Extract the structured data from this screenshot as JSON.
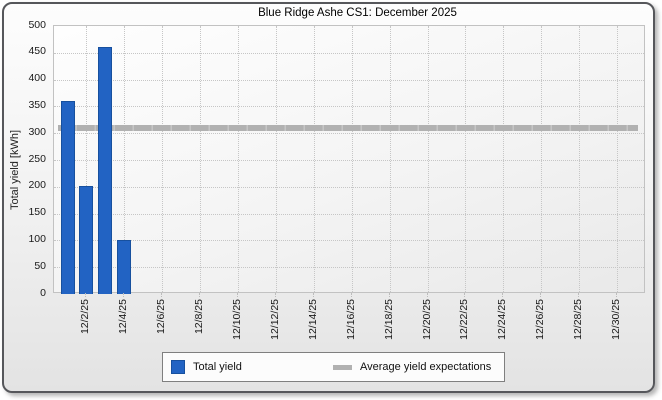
{
  "title": "Blue Ridge Ashe CS1: December 2025",
  "y_axis": {
    "label": "Total yield [kWh]",
    "ticks": [
      0,
      50,
      100,
      150,
      200,
      250,
      300,
      350,
      400,
      450,
      500
    ],
    "min": 0,
    "max": 500
  },
  "x_axis": {
    "tick_labels": [
      "12/2/25",
      "12/4/25",
      "12/6/25",
      "12/8/25",
      "12/10/25",
      "12/12/25",
      "12/14/25",
      "12/16/25",
      "12/18/25",
      "12/20/25",
      "12/22/25",
      "12/24/25",
      "12/26/25",
      "12/28/25",
      "12/30/25"
    ],
    "tick_days": [
      2,
      4,
      6,
      8,
      10,
      12,
      14,
      16,
      18,
      20,
      22,
      24,
      26,
      28,
      30
    ],
    "day_range": [
      1,
      31
    ]
  },
  "chart_data": {
    "type": "bar",
    "title": "Blue Ridge Ashe CS1: December 2025",
    "xlabel": "",
    "ylabel": "Total yield [kWh]",
    "ylim": [
      0,
      500
    ],
    "grid": true,
    "legend_position": "bottom",
    "categories": [
      "12/1/25",
      "12/2/25",
      "12/3/25",
      "12/4/25"
    ],
    "x_days": [
      1,
      2,
      3,
      4
    ],
    "values": [
      360,
      202,
      460,
      100
    ],
    "series_name": "Total yield",
    "average_line": {
      "label": "Average yield expectations",
      "value": 310
    }
  },
  "legend": {
    "items": [
      {
        "label": "Total yield",
        "swatch": "bar"
      },
      {
        "label": "Average yield expectations",
        "swatch": "line"
      }
    ]
  },
  "colors": {
    "bar_fill": "#2263c3",
    "bar_border": "#17509e",
    "average_line": "#b1b1b1",
    "grid": "#c6c6c6",
    "plot_border": "#c2c2c2",
    "frame_border": "#56575b",
    "text": "#111111"
  }
}
